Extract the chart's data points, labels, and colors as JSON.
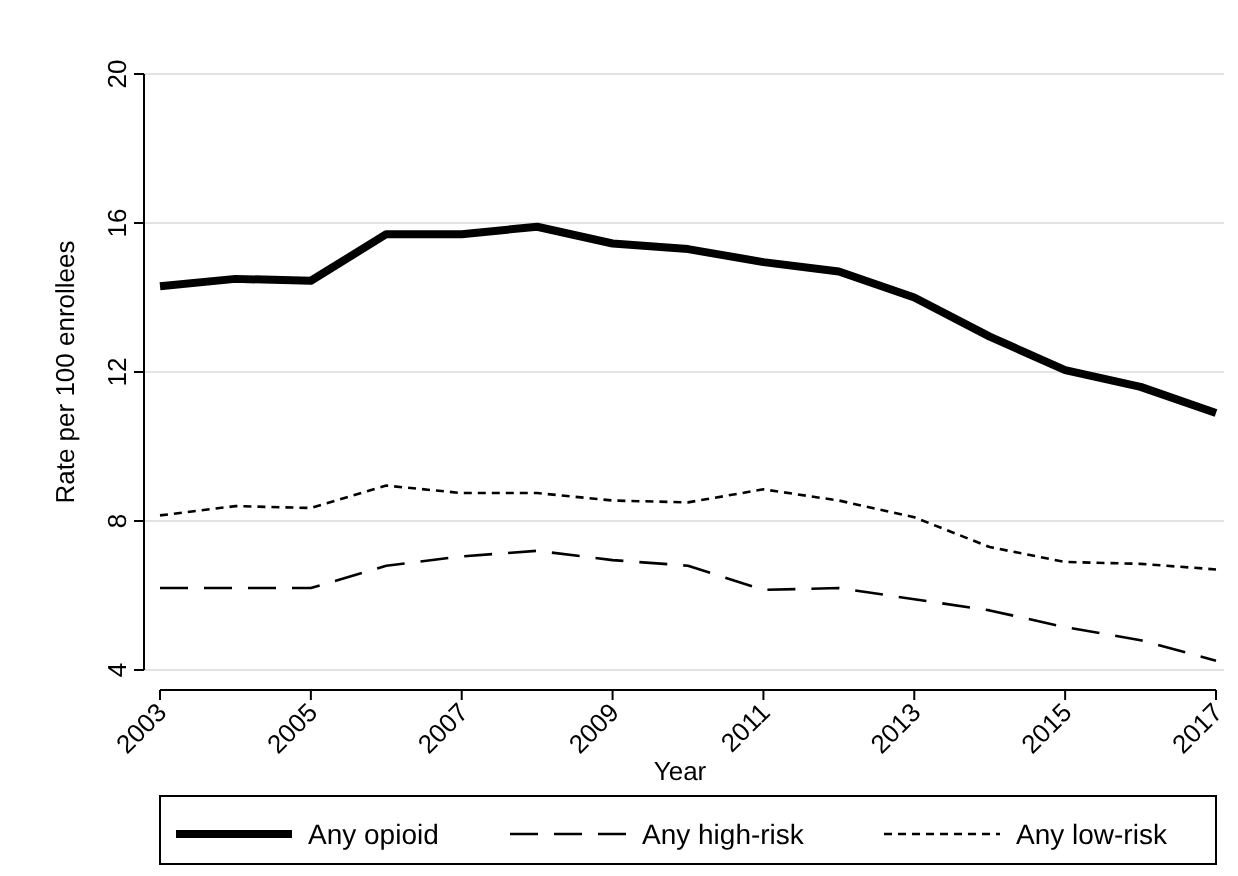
{
  "chart_data": {
    "type": "line",
    "xlabel": "Year",
    "ylabel": "Rate per 100 enrollees",
    "x": [
      2003,
      2004,
      2005,
      2006,
      2007,
      2008,
      2009,
      2010,
      2011,
      2012,
      2013,
      2014,
      2015,
      2016,
      2017
    ],
    "xlim": [
      2003,
      2017
    ],
    "xticks": [
      2003,
      2005,
      2007,
      2009,
      2011,
      2013,
      2015,
      2017
    ],
    "ylim": [
      4,
      20
    ],
    "yticks": [
      4,
      8,
      12,
      16,
      20
    ],
    "grid": "y",
    "legend": "bottom",
    "marker": "none",
    "series": [
      {
        "name": "Any opioid",
        "color": "#000000",
        "line_style": "solid",
        "values": [
          14.3,
          14.5,
          14.45,
          15.7,
          15.7,
          15.9,
          15.45,
          15.3,
          14.95,
          14.7,
          14.0,
          12.95,
          12.05,
          11.6,
          10.9
        ]
      },
      {
        "name": "Any high-risk",
        "color": "#000000",
        "line_style": "dashed",
        "values": [
          6.2,
          6.2,
          6.2,
          6.8,
          7.05,
          7.2,
          6.95,
          6.8,
          6.15,
          6.2,
          5.9,
          5.6,
          5.15,
          4.8,
          4.25
        ]
      },
      {
        "name": "Any low-risk",
        "color": "#000000",
        "line_style": "dotted",
        "values": [
          8.15,
          8.4,
          8.35,
          8.95,
          8.75,
          8.75,
          8.55,
          8.5,
          8.85,
          8.55,
          8.1,
          7.3,
          6.9,
          6.85,
          6.7
        ]
      }
    ]
  }
}
